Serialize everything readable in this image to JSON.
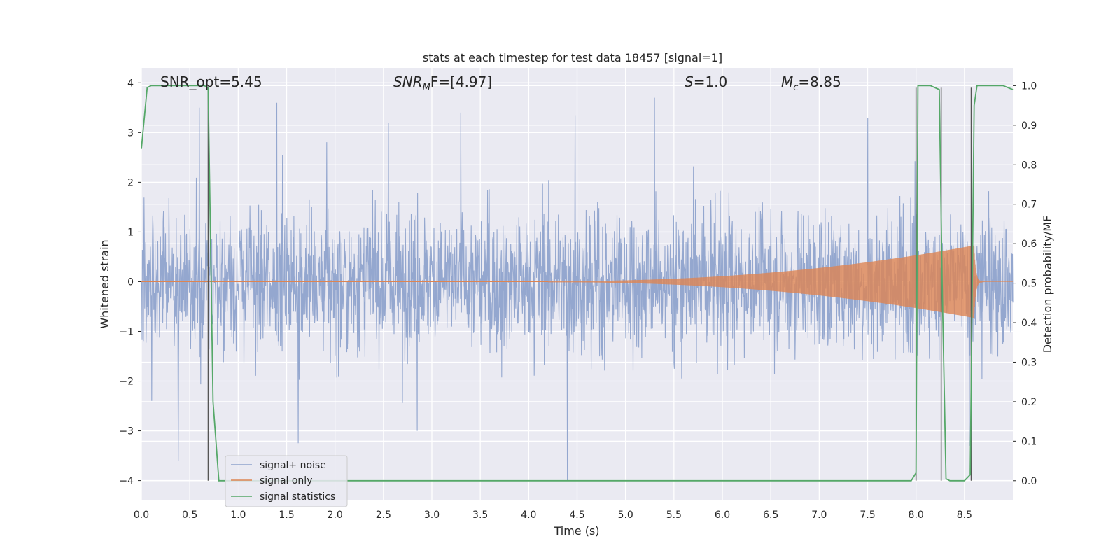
{
  "chart_data": {
    "type": "line",
    "title": "stats at each timestep for test data 18457 [signal=1]",
    "xlabel": "Time (s)",
    "ylabel": "Whitened strain",
    "y2label": "Detection probability/MF",
    "xlim": [
      0.0,
      9.0
    ],
    "ylim": [
      -4.4,
      4.3
    ],
    "y2lim": [
      -0.05,
      1.045
    ],
    "xticks": [
      0.0,
      0.5,
      1.0,
      1.5,
      2.0,
      2.5,
      3.0,
      3.5,
      4.0,
      4.5,
      5.0,
      5.5,
      6.0,
      6.5,
      7.0,
      7.5,
      8.0,
      8.5
    ],
    "xtick_labels": [
      "0.0",
      "0.5",
      "1.0",
      "1.5",
      "2.0",
      "2.5",
      "3.0",
      "3.5",
      "4.0",
      "4.5",
      "5.0",
      "5.5",
      "6.0",
      "6.5",
      "7.0",
      "7.5",
      "8.0",
      "8.5"
    ],
    "yticks": [
      4,
      3,
      2,
      1,
      0,
      -1,
      -2,
      -3,
      -4
    ],
    "ytick_labels": [
      "4",
      "3",
      "2",
      "1",
      "0",
      "−1",
      "−2",
      "−3",
      "−4"
    ],
    "y2ticks": [
      1.0,
      0.9,
      0.8,
      0.7,
      0.6,
      0.5,
      0.4,
      0.3,
      0.2,
      0.1,
      0.0
    ],
    "y2tick_labels": [
      "1.0",
      "0.9",
      "0.8",
      "0.7",
      "0.6",
      "0.5",
      "0.4",
      "0.3",
      "0.2",
      "0.1",
      "0.0"
    ],
    "grid": true,
    "legend_position": "lower-left",
    "colors": {
      "noise": "#8fa3cc",
      "signal": "#dd8452",
      "stats": "#55a868",
      "vline": "#555555",
      "background": "#eaeaf2",
      "grid": "#ffffff"
    },
    "annotations": {
      "snr_opt": "SNR_opt=5.45",
      "snr_mf_main": "SNR",
      "snr_mf_sub": "M",
      "snr_mf_rest": "F=[4.97]",
      "s_main": "S",
      "s_rest": "=1.0",
      "mc_main": "M",
      "mc_sub": "c",
      "mc_rest": "=8.85"
    },
    "series": [
      {
        "name": "signal+ noise",
        "kind": "noise",
        "duration": 9.0,
        "typical_amplitude": 1.5,
        "extremes": [
          {
            "x": 0.38,
            "y": -3.6
          },
          {
            "x": 0.6,
            "y": 3.5
          },
          {
            "x": 1.4,
            "y": 3.6
          },
          {
            "x": 1.62,
            "y": -3.25
          },
          {
            "x": 2.55,
            "y": 3.2
          },
          {
            "x": 4.4,
            "y": -4.0
          },
          {
            "x": 4.48,
            "y": 3.35
          },
          {
            "x": 5.3,
            "y": 3.7
          },
          {
            "x": 3.3,
            "y": 3.4
          },
          {
            "x": 7.5,
            "y": 3.3
          },
          {
            "x": 8.55,
            "y": -3.3
          },
          {
            "x": 2.85,
            "y": -3.0
          }
        ]
      },
      {
        "name": "signal only",
        "kind": "chirp",
        "start": 4.2,
        "peak_time": 8.6,
        "peak_amplitude": 0.72
      },
      {
        "name": "signal statistics",
        "kind": "line",
        "axis": "y2",
        "x": [
          0.0,
          0.06,
          0.1,
          0.65,
          0.69,
          0.74,
          0.8,
          7.95,
          8.0,
          8.02,
          8.15,
          8.24,
          8.27,
          8.31,
          8.35,
          8.5,
          8.56,
          8.6,
          8.63,
          8.9,
          9.0
        ],
        "y": [
          0.84,
          0.995,
          1.0,
          1.0,
          0.995,
          0.2,
          0.0,
          0.0,
          0.02,
          1.0,
          1.0,
          0.99,
          0.5,
          0.005,
          0.0,
          0.0,
          0.015,
          0.95,
          1.0,
          1.0,
          0.99
        ]
      }
    ],
    "vlines": [
      0.69,
      8.0,
      8.26,
      8.57
    ]
  }
}
